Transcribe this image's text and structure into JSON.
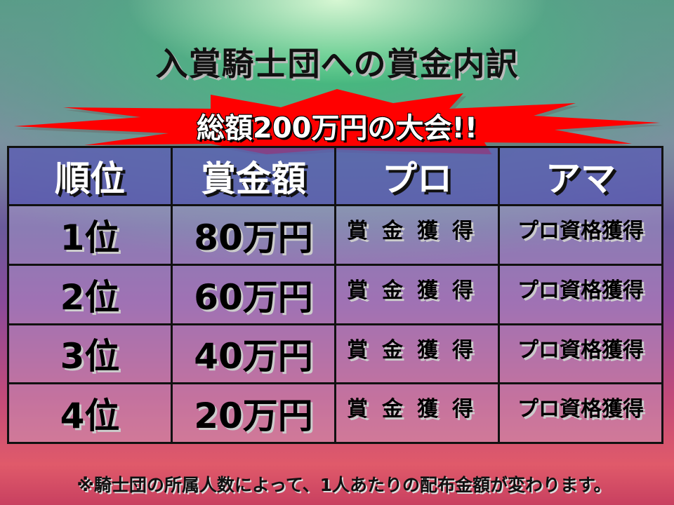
{
  "title": "入賞騎士団への賞金内訳",
  "banner": "総額200万円の大会!!",
  "colors": {
    "banner": "#ff0000",
    "header_row": "#5a5ab4"
  },
  "table": {
    "headers": [
      "順位",
      "賞金額",
      "プロ",
      "アマ"
    ],
    "rows": [
      {
        "rank": "1位",
        "amount": "80万円",
        "pro": "賞金獲得",
        "amateur": "プロ資格獲得"
      },
      {
        "rank": "2位",
        "amount": "60万円",
        "pro": "賞金獲得",
        "amateur": "プロ資格獲得"
      },
      {
        "rank": "3位",
        "amount": "40万円",
        "pro": "賞金獲得",
        "amateur": "プロ資格獲得"
      },
      {
        "rank": "4位",
        "amount": "20万円",
        "pro": "賞金獲得",
        "amateur": "プロ資格獲得"
      }
    ]
  },
  "footer": "※騎士団の所属人数によって、1人あたりの配布金額が変わります。"
}
